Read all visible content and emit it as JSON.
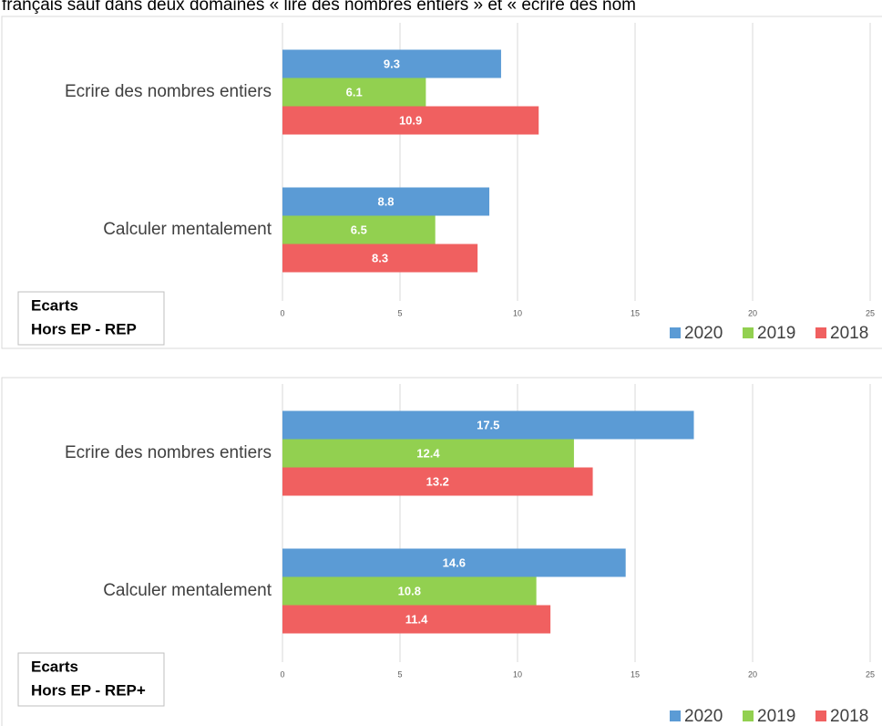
{
  "header_text": "français sauf dans deux domaines « lire des nombres entiers » et « écrire des nom",
  "chart_data": [
    {
      "type": "hbar",
      "categories": [
        "Ecrire des nombres entiers",
        "Calculer mentalement"
      ],
      "series": [
        {
          "name": "2020",
          "color": "#5b9bd5",
          "values": [
            9.3,
            8.8
          ]
        },
        {
          "name": "2019",
          "color": "#92d050",
          "values": [
            6.1,
            6.5
          ]
        },
        {
          "name": "2018",
          "color": "#f06060",
          "values": [
            10.9,
            8.3
          ]
        }
      ],
      "xlim": [
        0,
        25
      ],
      "xticks": [
        0,
        5,
        10,
        15,
        20,
        25
      ],
      "grid": true,
      "annotation": [
        "Ecarts",
        "Hors EP - REP"
      ],
      "legend": "bottom-right"
    },
    {
      "type": "hbar",
      "categories": [
        "Ecrire des nombres entiers",
        "Calculer mentalement"
      ],
      "series": [
        {
          "name": "2020",
          "color": "#5b9bd5",
          "values": [
            17.5,
            14.6
          ]
        },
        {
          "name": "2019",
          "color": "#92d050",
          "values": [
            12.4,
            10.8
          ]
        },
        {
          "name": "2018",
          "color": "#f06060",
          "values": [
            13.2,
            11.4
          ]
        }
      ],
      "xlim": [
        0,
        25
      ],
      "xticks": [
        0,
        5,
        10,
        15,
        20,
        25
      ],
      "grid": true,
      "annotation": [
        "Ecarts",
        "Hors EP - REP+"
      ],
      "legend": "bottom-right"
    }
  ]
}
